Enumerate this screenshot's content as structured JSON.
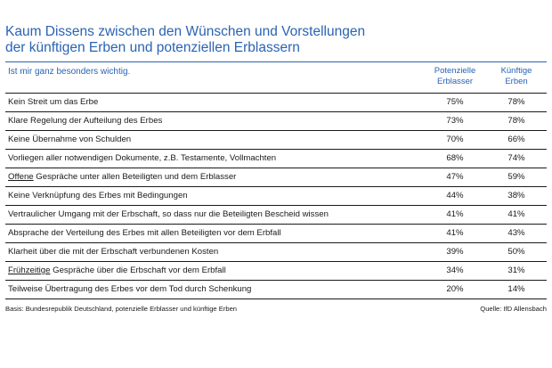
{
  "chart_data": {
    "type": "table",
    "title_lines": [
      "Kaum Dissens zwischen den Wünschen und Vorstellungen",
      "der künftigen Erben und potenziellen Erblassern"
    ],
    "subheading": "Ist mir ganz besonders wichtig.",
    "columns": [
      {
        "line1": "Potenzielle",
        "line2": "Erblasser"
      },
      {
        "line1": "Künftige",
        "line2": "Erben"
      }
    ],
    "rows": [
      {
        "underlined": "",
        "label": "Kein Streit um das Erbe",
        "values": [
          "75%",
          "78%"
        ]
      },
      {
        "underlined": "",
        "label": "Klare Regelung der Aufteilung des Erbes",
        "values": [
          "73%",
          "78%"
        ]
      },
      {
        "underlined": "",
        "label": "Keine Übernahme von Schulden",
        "values": [
          "70%",
          "66%"
        ]
      },
      {
        "underlined": "",
        "label": "Vorliegen aller notwendigen Dokumente, z.B. Testamente, Vollmachten",
        "values": [
          "68%",
          "74%"
        ]
      },
      {
        "underlined": "Offene",
        "label": " Gespräche unter allen Beteiligten und dem Erblasser",
        "values": [
          "47%",
          "59%"
        ]
      },
      {
        "underlined": "",
        "label": "Keine Verknüpfung des Erbes mit Bedingungen",
        "values": [
          "44%",
          "38%"
        ]
      },
      {
        "underlined": "",
        "label": "Vertraulicher Umgang mit der Erbschaft, so dass nur die Beteiligten Bescheid wissen",
        "values": [
          "41%",
          "41%"
        ]
      },
      {
        "underlined": "",
        "label": "Absprache der Verteilung des Erbes mit allen Beteiligten vor dem Erbfall",
        "values": [
          "41%",
          "43%"
        ]
      },
      {
        "underlined": "",
        "label": "Klarheit über die mit der Erbschaft verbundenen Kosten",
        "values": [
          "39%",
          "50%"
        ]
      },
      {
        "underlined": "Frühzeitige",
        "label": " Gespräche über die Erbschaft vor dem Erbfall",
        "values": [
          "34%",
          "31%"
        ]
      },
      {
        "underlined": "",
        "label": "Teilweise Übertragung des Erbes vor dem Tod durch Schenkung",
        "values": [
          "20%",
          "14%"
        ]
      }
    ],
    "basis": "Basis: Bundesrepublik Deutschland, potenzielle Erblasser und künftige Erben",
    "source": "Quelle: IfD Allensbach"
  },
  "colors": {
    "accent": "#2a63b2",
    "text": "#1a1a1a",
    "rule": "#1a1a1a"
  }
}
